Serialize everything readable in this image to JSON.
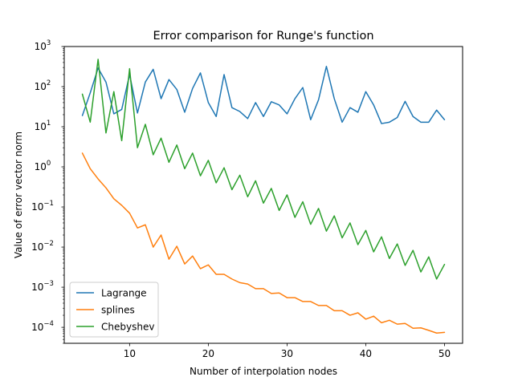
{
  "chart_data": {
    "type": "line",
    "title": "Error comparison for Runge's function",
    "xlabel": "Number of interpolation nodes",
    "ylabel": "Value of error vector norm",
    "xlim": [
      1.7,
      52.3
    ],
    "ylim": [
      4e-05,
      1000
    ],
    "yscale": "log",
    "grid": false,
    "legend_position": "lower-left",
    "x_ticks": [
      10,
      20,
      30,
      40,
      50
    ],
    "y_ticks": [
      {
        "value": 0.0001,
        "mantissa": "10",
        "exp": "−4"
      },
      {
        "value": 0.001,
        "mantissa": "10",
        "exp": "−3"
      },
      {
        "value": 0.01,
        "mantissa": "10",
        "exp": "−2"
      },
      {
        "value": 0.1,
        "mantissa": "10",
        "exp": "−1"
      },
      {
        "value": 1,
        "mantissa": "10",
        "exp": "0"
      },
      {
        "value": 10,
        "mantissa": "10",
        "exp": "1"
      },
      {
        "value": 100,
        "mantissa": "10",
        "exp": "2"
      },
      {
        "value": 1000,
        "mantissa": "10",
        "exp": "3"
      }
    ],
    "x": [
      4,
      5,
      6,
      7,
      8,
      9,
      10,
      11,
      12,
      13,
      14,
      15,
      16,
      17,
      18,
      19,
      20,
      21,
      22,
      23,
      24,
      25,
      26,
      27,
      28,
      29,
      30,
      31,
      32,
      33,
      34,
      35,
      36,
      37,
      38,
      39,
      40,
      41,
      42,
      43,
      44,
      45,
      46,
      47,
      48,
      49,
      50
    ],
    "series": [
      {
        "name": "Lagrange",
        "color": "#1f77b4",
        "values": [
          19,
          70,
          290,
          130,
          21,
          27,
          200,
          22,
          130,
          270,
          50,
          150,
          85,
          23,
          90,
          220,
          40,
          18,
          200,
          30,
          24,
          16,
          40,
          18,
          42,
          35,
          21,
          50,
          95,
          15,
          47,
          320,
          50,
          13,
          30,
          23,
          75,
          35,
          12,
          13,
          17,
          43,
          18,
          13,
          13,
          26,
          15
        ]
      },
      {
        "name": "splines",
        "color": "#ff7f0e",
        "values": [
          2.2,
          0.9,
          0.5,
          0.3,
          0.16,
          0.11,
          0.07,
          0.03,
          0.036,
          0.01,
          0.02,
          0.005,
          0.0105,
          0.0038,
          0.006,
          0.0029,
          0.0036,
          0.0021,
          0.0021,
          0.0016,
          0.0013,
          0.0012,
          0.00092,
          0.00092,
          0.0007,
          0.00072,
          0.00055,
          0.00055,
          0.00044,
          0.00044,
          0.00035,
          0.00035,
          0.00026,
          0.00026,
          0.0002,
          0.00023,
          0.00016,
          0.00019,
          0.00013,
          0.00015,
          0.00012,
          0.000125,
          9.5e-05,
          9.7e-05,
          8.4e-05,
          7.2e-05,
          7.5e-05
        ]
      },
      {
        "name": "Chebyshev",
        "color": "#2ca02c",
        "values": [
          65,
          13,
          480,
          7,
          75,
          4.5,
          280,
          3,
          11.5,
          2,
          5.2,
          1.3,
          3.5,
          0.9,
          2.2,
          0.6,
          1.45,
          0.4,
          0.95,
          0.27,
          0.62,
          0.18,
          0.45,
          0.125,
          0.29,
          0.082,
          0.2,
          0.055,
          0.135,
          0.037,
          0.092,
          0.025,
          0.06,
          0.017,
          0.04,
          0.0115,
          0.026,
          0.0076,
          0.018,
          0.0052,
          0.012,
          0.0035,
          0.0083,
          0.0024,
          0.0057,
          0.0016,
          0.0037
        ]
      }
    ]
  }
}
